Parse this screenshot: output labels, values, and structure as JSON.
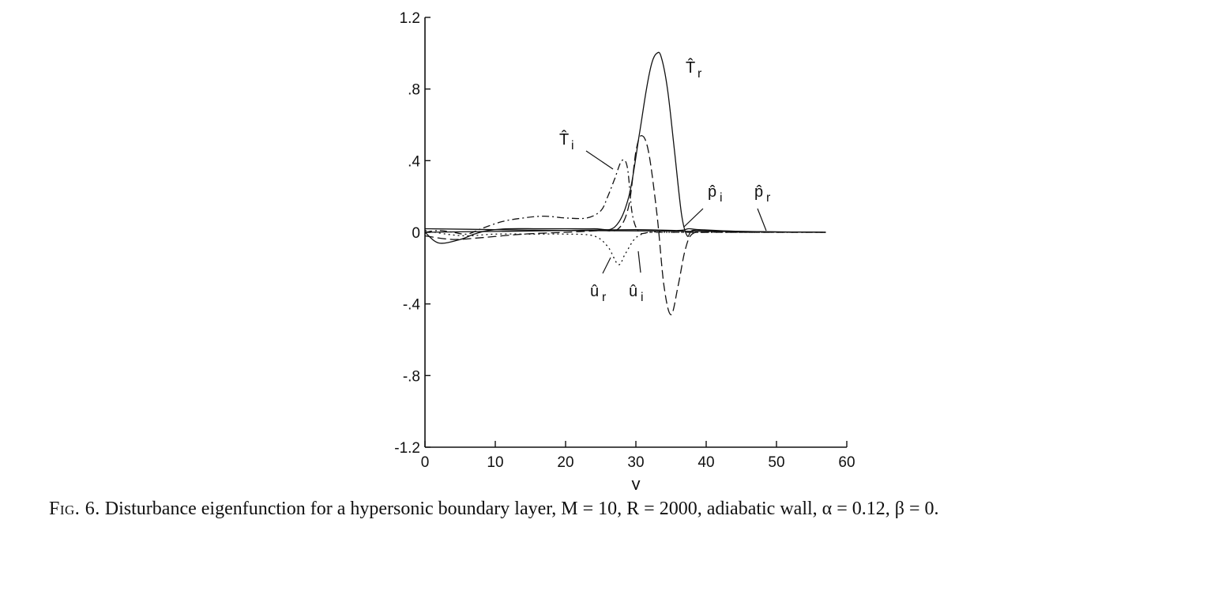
{
  "chart_data": {
    "type": "line",
    "xlabel": "y",
    "ylabel": "",
    "xlim": [
      0,
      60
    ],
    "ylim": [
      -1.2,
      1.2
    ],
    "x_ticks": [
      "0",
      "10",
      "20",
      "30",
      "40",
      "50",
      "60"
    ],
    "y_ticks": [
      "1.2",
      ".8",
      ".4",
      "0",
      "-.4",
      "-.8",
      "-1.2"
    ],
    "grid": false,
    "series": [
      {
        "name": "T̂r",
        "style": "solid",
        "x": [
          0,
          2,
          5,
          7,
          9,
          12,
          16,
          20,
          24,
          27,
          29,
          30.5,
          31.5,
          32.3,
          33,
          33.6,
          34.5,
          35.5,
          36.5,
          37.3,
          38,
          40,
          45,
          50,
          57
        ],
        "y": [
          0,
          -0.06,
          -0.04,
          -0.01,
          0.01,
          0.02,
          0.02,
          0.02,
          0.02,
          0.03,
          0.2,
          0.55,
          0.8,
          0.95,
          1.0,
          0.98,
          0.8,
          0.45,
          0.1,
          -0.02,
          0.01,
          0.01,
          0.005,
          0.002,
          0.0
        ]
      },
      {
        "name": "T̂i",
        "style": "dash-dot",
        "x": [
          0,
          2,
          4,
          6,
          8,
          11,
          14,
          17,
          20,
          23,
          25,
          26,
          27,
          28,
          28.8,
          29.5,
          30.5,
          32,
          35,
          40,
          50,
          57
        ],
        "y": [
          0,
          0.01,
          0.0,
          -0.01,
          0.02,
          0.06,
          0.08,
          0.09,
          0.08,
          0.08,
          0.12,
          0.2,
          0.3,
          0.4,
          0.36,
          0.1,
          0.0,
          0.0,
          0.0,
          0.0,
          0.0,
          0.0
        ]
      },
      {
        "name": "ûr",
        "style": "dotted",
        "x": [
          0,
          3,
          6,
          10,
          15,
          20,
          24,
          26,
          27.5,
          28.5,
          30,
          32,
          35,
          40,
          50,
          57
        ],
        "y": [
          0.01,
          -0.01,
          -0.02,
          -0.01,
          -0.01,
          -0.01,
          -0.02,
          -0.08,
          -0.18,
          -0.12,
          -0.03,
          0.0,
          0.0,
          0.0,
          0.0,
          0.0
        ]
      },
      {
        "name": "ûi",
        "style": "long-dash",
        "x": [
          0,
          4,
          8,
          14,
          20,
          25,
          27.5,
          29,
          30,
          30.8,
          31.8,
          33,
          34,
          35,
          36,
          37,
          38,
          40,
          45,
          57
        ],
        "y": [
          -0.02,
          -0.04,
          -0.03,
          -0.01,
          0.0,
          0.01,
          0.02,
          0.15,
          0.45,
          0.54,
          0.45,
          0.1,
          -0.3,
          -0.46,
          -0.3,
          -0.1,
          -0.01,
          0.0,
          0.0,
          0.0
        ]
      },
      {
        "name": "p̂i",
        "style": "solid",
        "x": [
          0,
          10,
          20,
          30,
          36,
          37.5,
          39,
          45,
          57
        ],
        "y": [
          0,
          0.005,
          0.01,
          0.015,
          0.01,
          0.02,
          0.015,
          0.005,
          0.0
        ]
      },
      {
        "name": "p̂r",
        "style": "solid",
        "x": [
          0,
          10,
          20,
          30,
          40,
          48,
          57
        ],
        "y": [
          0.02,
          0.015,
          0.01,
          0.008,
          0.005,
          0.002,
          0.0
        ]
      }
    ],
    "curve_labels": [
      {
        "main": "T̂",
        "sub": "r"
      },
      {
        "main": "T̂",
        "sub": "i"
      },
      {
        "main": "p̂",
        "sub": "i"
      },
      {
        "main": "p̂",
        "sub": "r"
      },
      {
        "main": "û",
        "sub": "r"
      },
      {
        "main": "û",
        "sub": "i"
      }
    ]
  },
  "caption": {
    "figure_number": "Fig. 6.",
    "text": "Disturbance eigenfunction for a hypersonic boundary layer, M = 10, R = 2000, adiabatic wall, α = 0.12, β = 0."
  }
}
